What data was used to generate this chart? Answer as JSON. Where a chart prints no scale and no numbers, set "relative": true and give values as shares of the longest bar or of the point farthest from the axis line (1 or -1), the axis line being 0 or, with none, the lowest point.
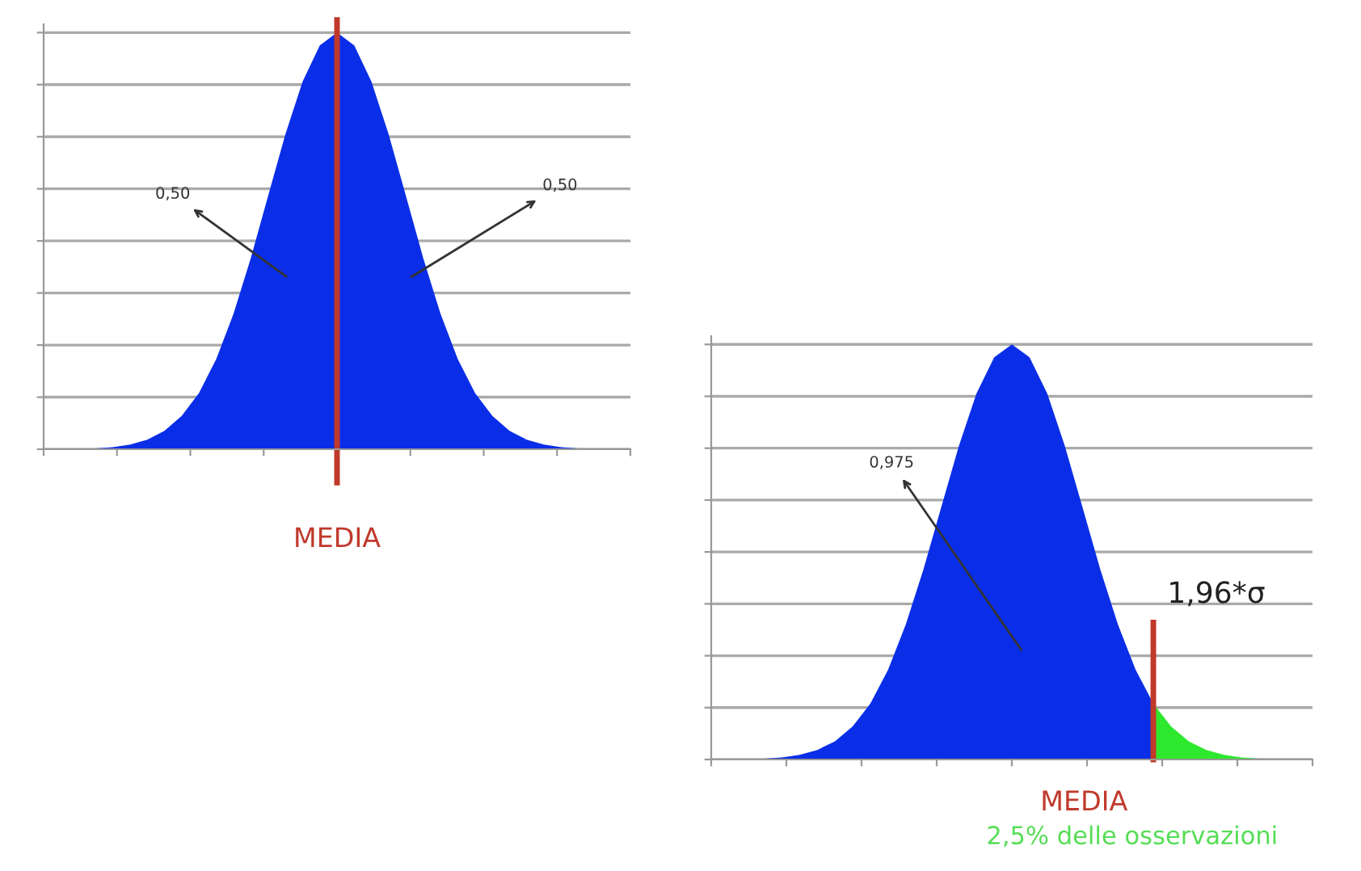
{
  "chart_data": [
    {
      "type": "area",
      "relative": true,
      "grid": "y",
      "categories": [
        null,
        null,
        null,
        null,
        null,
        null,
        null,
        null,
        null,
        null,
        null,
        null,
        null,
        null,
        null,
        null,
        null,
        null,
        null,
        null,
        null,
        null,
        null,
        null,
        null,
        null,
        null,
        null,
        null,
        null,
        null,
        null,
        null
      ],
      "series": [
        {
          "color": "#0a2ee8",
          "values": [
            0,
            0.001,
            0.002,
            0.005,
            0.011,
            0.023,
            0.044,
            0.08,
            0.135,
            0.216,
            0.325,
            0.458,
            0.607,
            0.755,
            0.882,
            0.969,
            1,
            0.969,
            0.882,
            0.755,
            0.607,
            0.458,
            0.325,
            0.216,
            0.135,
            0.08,
            0.044,
            0.023,
            0.011,
            0.005,
            0.002,
            0.001,
            0
          ]
        }
      ],
      "annotations": [
        "0,50",
        "0,50",
        "MEDIA"
      ]
    },
    {
      "type": "area",
      "relative": true,
      "grid": "y",
      "categories": [
        null,
        null,
        null,
        null,
        null,
        null,
        null,
        null,
        null,
        null,
        null,
        null,
        null,
        null,
        null,
        null,
        null,
        null,
        null,
        null,
        null,
        null,
        null,
        null,
        null,
        null,
        null,
        null,
        null,
        null,
        null,
        null,
        null
      ],
      "series": [
        {
          "color": "#0a2ee8",
          "values": [
            0,
            0.001,
            0.002,
            0.005,
            0.011,
            0.023,
            0.044,
            0.08,
            0.135,
            0.216,
            0.325,
            0.458,
            0.607,
            0.755,
            0.882,
            0.969,
            1,
            0.969,
            0.882,
            0.755,
            0.607,
            0.458,
            0.325,
            0.216,
            0.135,
            null,
            null,
            null,
            null,
            null,
            null,
            null,
            null
          ]
        },
        {
          "color": "#2ee82e",
          "values": [
            null,
            null,
            null,
            null,
            null,
            null,
            null,
            null,
            null,
            null,
            null,
            null,
            null,
            null,
            null,
            null,
            null,
            null,
            null,
            null,
            null,
            null,
            null,
            null,
            0.135,
            0.08,
            0.044,
            0.023,
            0.011,
            0.005,
            0.002,
            0.001,
            0
          ]
        }
      ],
      "annotations": [
        "0,975",
        "1,96*σ",
        "MEDIA",
        "2,5% delle osservazioni"
      ]
    }
  ]
}
